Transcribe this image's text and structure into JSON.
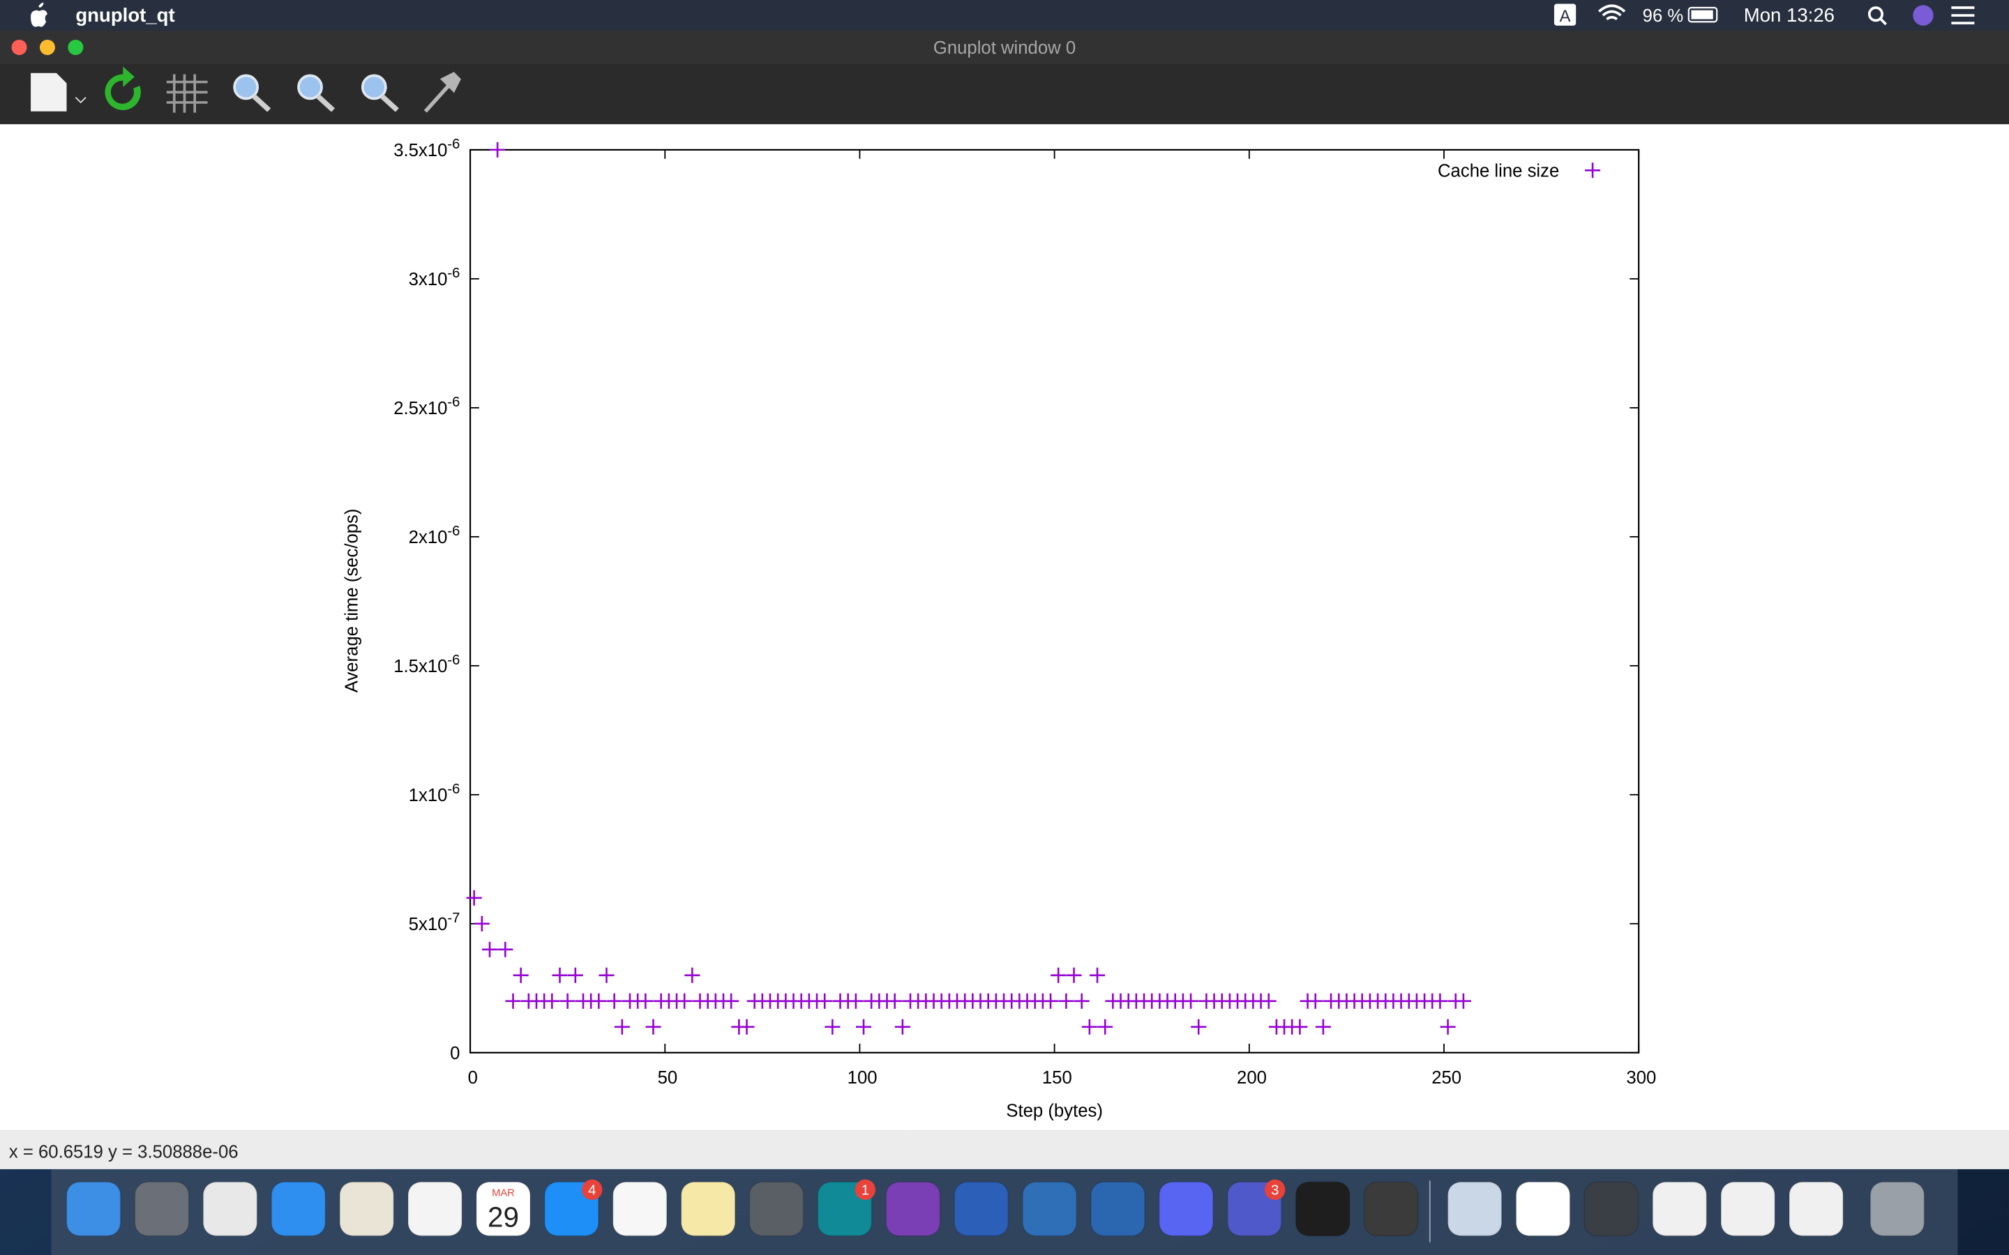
{
  "menu_bar": {
    "app": "gnuplot_qt",
    "input": "A",
    "battery": "96 %",
    "clock": "Mon 13:26"
  },
  "window": {
    "title": "Gnuplot window 0",
    "status": "x = 60.6519 y = 3.50888e-06"
  },
  "dock": {
    "calendar_month": "MAR",
    "calendar_day": "29",
    "badges": [
      "4",
      "1",
      "3"
    ]
  },
  "chart_data": {
    "type": "scatter",
    "x_label": "Step (bytes)",
    "y_label": "Average time (sec/ops)",
    "legend": "top-right",
    "mirror_ticks": true,
    "xlim": [
      0,
      300
    ],
    "ylim": [
      0,
      3.5e-06
    ],
    "xticks": [
      0,
      50,
      100,
      150,
      200,
      250,
      300
    ],
    "yticks": [
      0,
      {
        "value": 5e-07,
        "label": "5x10",
        "sup": "-7"
      },
      {
        "value": 1e-06,
        "label": "1x10",
        "sup": "-6"
      },
      {
        "value": 1.5e-06,
        "label": "1.5x10",
        "sup": "-6"
      },
      {
        "value": 2e-06,
        "label": "2x10",
        "sup": "-6"
      },
      {
        "value": 2.5e-06,
        "label": "2.5x10",
        "sup": "-6"
      },
      {
        "value": 3e-06,
        "label": "3x10",
        "sup": "-6"
      },
      {
        "value": 3.5e-06,
        "label": "3.5x10",
        "sup": "-6"
      }
    ],
    "series": [
      {
        "name": "Cache line size",
        "color": "#9400d3",
        "marker": "+",
        "x": [
          1,
          3,
          5,
          7,
          9,
          11,
          13,
          15,
          17,
          19,
          21,
          23,
          25,
          27,
          29,
          31,
          33,
          35,
          37,
          39,
          41,
          43,
          45,
          47,
          49,
          51,
          53,
          55,
          57,
          59,
          61,
          63,
          65,
          67,
          69,
          71,
          73,
          75,
          77,
          79,
          81,
          83,
          85,
          87,
          89,
          91,
          93,
          95,
          97,
          99,
          101,
          103,
          105,
          107,
          109,
          111,
          113,
          115,
          117,
          119,
          121,
          123,
          125,
          127,
          129,
          131,
          133,
          135,
          137,
          139,
          141,
          143,
          145,
          147,
          149,
          151,
          153,
          155,
          157,
          159,
          161,
          163,
          165,
          167,
          169,
          171,
          173,
          175,
          177,
          179,
          181,
          183,
          185,
          187,
          189,
          191,
          193,
          195,
          197,
          199,
          201,
          203,
          205,
          207,
          209,
          211,
          213,
          215,
          217,
          219,
          221,
          223,
          225,
          227,
          229,
          231,
          233,
          235,
          237,
          239,
          241,
          243,
          245,
          247,
          249,
          251,
          253,
          255
        ],
        "values": [
          6e-07,
          5e-07,
          4e-07,
          3.5e-06,
          4e-07,
          2e-07,
          3e-07,
          2e-07,
          2e-07,
          2e-07,
          2e-07,
          3e-07,
          2e-07,
          3e-07,
          2e-07,
          2e-07,
          2e-07,
          3e-07,
          2e-07,
          1e-07,
          2e-07,
          2e-07,
          2e-07,
          1e-07,
          2e-07,
          2e-07,
          2e-07,
          2e-07,
          3e-07,
          2e-07,
          2e-07,
          2e-07,
          2e-07,
          2e-07,
          1e-07,
          1e-07,
          2e-07,
          2e-07,
          2e-07,
          2e-07,
          2e-07,
          2e-07,
          2e-07,
          2e-07,
          2e-07,
          2e-07,
          1e-07,
          2e-07,
          2e-07,
          2e-07,
          1e-07,
          2e-07,
          2e-07,
          2e-07,
          2e-07,
          1e-07,
          2e-07,
          2e-07,
          2e-07,
          2e-07,
          2e-07,
          2e-07,
          2e-07,
          2e-07,
          2e-07,
          2e-07,
          2e-07,
          2e-07,
          2e-07,
          2e-07,
          2e-07,
          2e-07,
          2e-07,
          2e-07,
          2e-07,
          3e-07,
          2e-07,
          3e-07,
          2e-07,
          1e-07,
          3e-07,
          1e-07,
          2e-07,
          2e-07,
          2e-07,
          2e-07,
          2e-07,
          2e-07,
          2e-07,
          2e-07,
          2e-07,
          2e-07,
          2e-07,
          1e-07,
          2e-07,
          2e-07,
          2e-07,
          2e-07,
          2e-07,
          2e-07,
          2e-07,
          2e-07,
          2e-07,
          1e-07,
          1e-07,
          1e-07,
          1e-07,
          2e-07,
          2e-07,
          1e-07,
          2e-07,
          2e-07,
          2e-07,
          2e-07,
          2e-07,
          2e-07,
          2e-07,
          2e-07,
          2e-07,
          2e-07,
          2e-07,
          2e-07,
          2e-07,
          2e-07,
          2e-07,
          1e-07,
          2e-07,
          2e-07
        ]
      }
    ]
  }
}
